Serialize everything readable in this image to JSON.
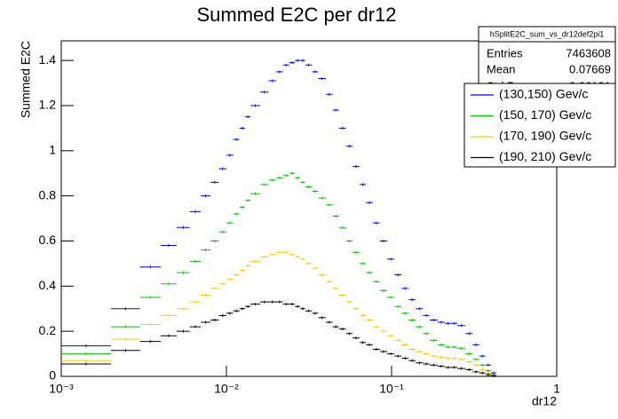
{
  "chart_data": {
    "type": "histogram",
    "title": "Summed E2C per dr12",
    "x_label": "dr12",
    "y_label": "Summed E2C",
    "xscale": "log",
    "xlim": [
      0.001,
      1
    ],
    "ylim": [
      0,
      1.487
    ],
    "xticks": [
      {
        "value": 0.001,
        "label": "10⁻³"
      },
      {
        "value": 0.01,
        "label": "10⁻²"
      },
      {
        "value": 0.1,
        "label": "10⁻¹"
      },
      1
    ],
    "yticks": [
      0,
      0.2,
      0.4,
      0.6,
      0.8,
      1,
      1.2,
      1.4
    ],
    "legend_position": "upper right",
    "bins": [
      0.001,
      0.002,
      0.003,
      0.004,
      0.005,
      0.006,
      0.007,
      0.008,
      0.009,
      0.01,
      0.011,
      0.012,
      0.013,
      0.014,
      0.016,
      0.018,
      0.02,
      0.022,
      0.024,
      0.026,
      0.028,
      0.03,
      0.033,
      0.036,
      0.04,
      0.044,
      0.048,
      0.053,
      0.058,
      0.064,
      0.07,
      0.077,
      0.085,
      0.094,
      0.104,
      0.115,
      0.127,
      0.14,
      0.155,
      0.17,
      0.19,
      0.21,
      0.23,
      0.25,
      0.28,
      0.31,
      0.34,
      0.37,
      0.4,
      0.43
    ],
    "series": [
      {
        "name": "(130,150) Gev/c",
        "color": "#0000ff",
        "values": [
          0.135,
          0.3,
          0.485,
          0.58,
          0.66,
          0.73,
          0.8,
          0.86,
          0.92,
          0.98,
          1.05,
          1.1,
          1.15,
          1.2,
          1.26,
          1.31,
          1.35,
          1.38,
          1.39,
          1.4,
          1.4,
          1.38,
          1.35,
          1.32,
          1.25,
          1.18,
          1.1,
          1.02,
          0.93,
          0.85,
          0.77,
          0.68,
          0.6,
          0.52,
          0.45,
          0.39,
          0.34,
          0.3,
          0.27,
          0.25,
          0.24,
          0.235,
          0.235,
          0.225,
          0.19,
          0.14,
          0.09,
          0.05,
          0.015
        ]
      },
      {
        "name": "(150, 170) Gev/c",
        "color": "#00c800",
        "values": [
          0.1,
          0.22,
          0.35,
          0.41,
          0.46,
          0.51,
          0.56,
          0.6,
          0.64,
          0.68,
          0.72,
          0.75,
          0.78,
          0.81,
          0.85,
          0.87,
          0.88,
          0.89,
          0.9,
          0.88,
          0.86,
          0.84,
          0.82,
          0.79,
          0.76,
          0.71,
          0.66,
          0.6,
          0.55,
          0.5,
          0.46,
          0.42,
          0.38,
          0.35,
          0.31,
          0.28,
          0.25,
          0.22,
          0.19,
          0.16,
          0.14,
          0.13,
          0.13,
          0.125,
          0.1,
          0.075,
          0.05,
          0.025,
          0.008
        ]
      },
      {
        "name": "(170, 190) Gev/c",
        "color": "#ffcc00",
        "values": [
          0.07,
          0.165,
          0.23,
          0.27,
          0.3,
          0.33,
          0.36,
          0.39,
          0.41,
          0.43,
          0.45,
          0.47,
          0.49,
          0.51,
          0.53,
          0.54,
          0.55,
          0.55,
          0.54,
          0.53,
          0.52,
          0.5,
          0.48,
          0.45,
          0.42,
          0.39,
          0.36,
          0.33,
          0.3,
          0.27,
          0.25,
          0.22,
          0.2,
          0.18,
          0.16,
          0.14,
          0.12,
          0.11,
          0.1,
          0.09,
          0.085,
          0.08,
          0.08,
          0.075,
          0.065,
          0.05,
          0.03,
          0.015,
          0.005
        ]
      },
      {
        "name": "(190, 210) Gev/c",
        "color": "#000000",
        "values": [
          0.055,
          0.115,
          0.155,
          0.18,
          0.2,
          0.22,
          0.24,
          0.25,
          0.27,
          0.28,
          0.29,
          0.3,
          0.31,
          0.32,
          0.33,
          0.33,
          0.33,
          0.32,
          0.32,
          0.31,
          0.3,
          0.29,
          0.28,
          0.26,
          0.24,
          0.22,
          0.21,
          0.19,
          0.17,
          0.15,
          0.14,
          0.12,
          0.11,
          0.1,
          0.09,
          0.08,
          0.07,
          0.06,
          0.055,
          0.05,
          0.045,
          0.04,
          0.04,
          0.035,
          0.03,
          0.02,
          0.015,
          0.008,
          0.003
        ]
      }
    ],
    "stats": {
      "name": "hSplitE2C_sum_vs_dr12def2pi1",
      "rows": [
        [
          "Entries",
          "7463608"
        ],
        [
          "Mean",
          "0.07669"
        ],
        [
          "Std Dev",
          "0.06181"
        ]
      ]
    }
  }
}
